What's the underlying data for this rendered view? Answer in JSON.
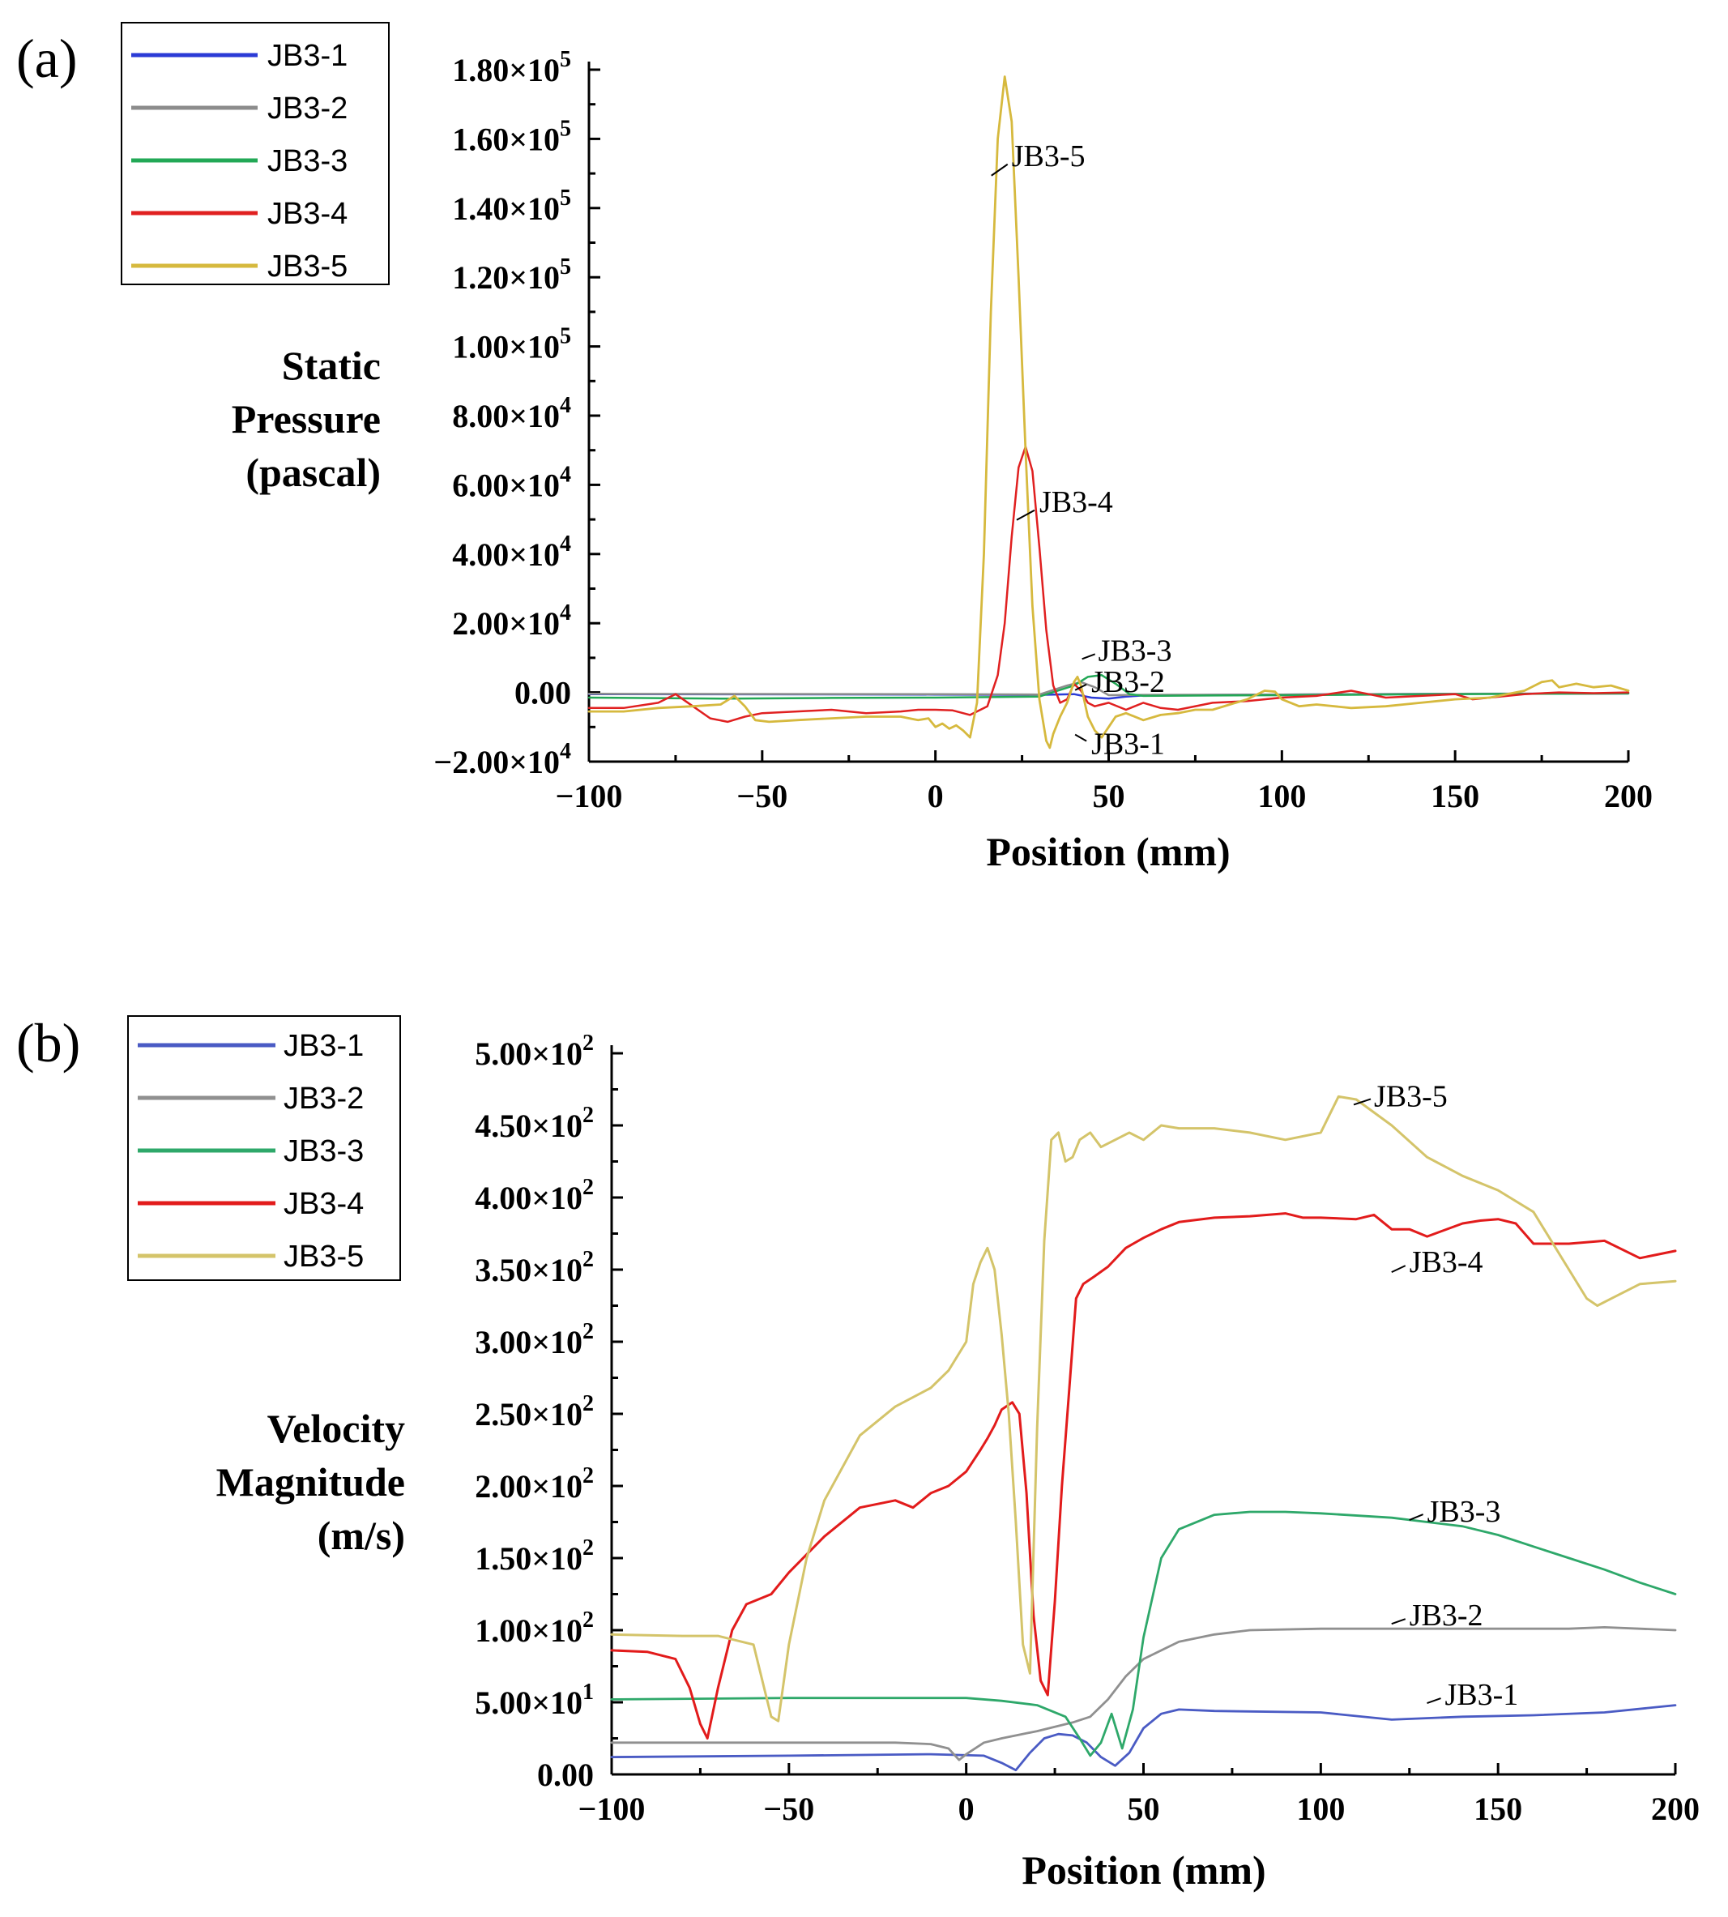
{
  "chart_data": [
    {
      "type": "line",
      "panel_label": "(a)",
      "xlabel": "Position (mm)",
      "ylabel": [
        "Static",
        "Pressure",
        "(pascal)"
      ],
      "xlim": [
        -100,
        200
      ],
      "ylim": [
        -20000,
        180000
      ],
      "xticks": [
        -100,
        -50,
        0,
        50,
        100,
        150,
        200
      ],
      "xtick_labels": [
        "−100",
        "−50",
        "0",
        "50",
        "100",
        "150",
        "200"
      ],
      "ytick_labels": [
        {
          "value": -20000,
          "mantissa": "−2.00×10",
          "exp": "4"
        },
        {
          "value": 0,
          "mantissa": "0.00",
          "exp": ""
        },
        {
          "value": 20000,
          "mantissa": "2.00×10",
          "exp": "4"
        },
        {
          "value": 40000,
          "mantissa": "4.00×10",
          "exp": "4"
        },
        {
          "value": 60000,
          "mantissa": "6.00×10",
          "exp": "4"
        },
        {
          "value": 80000,
          "mantissa": "8.00×10",
          "exp": "4"
        },
        {
          "value": 100000,
          "mantissa": "1.00×10",
          "exp": "5"
        },
        {
          "value": 120000,
          "mantissa": "1.20×10",
          "exp": "5"
        },
        {
          "value": 140000,
          "mantissa": "1.40×10",
          "exp": "5"
        },
        {
          "value": 160000,
          "mantissa": "1.60×10",
          "exp": "5"
        },
        {
          "value": 180000,
          "mantissa": "1.80×10",
          "exp": "5"
        }
      ],
      "legend_position": "top-left",
      "series": [
        {
          "name": "JB3-1",
          "color": "#2b3bd6",
          "x": [
            -100,
            0,
            30,
            40,
            45,
            50,
            55,
            60,
            80,
            100,
            150,
            200
          ],
          "y": [
            -500,
            -600,
            -700,
            -500,
            -1500,
            -1800,
            -1200,
            -900,
            -700,
            -600,
            -400,
            -300
          ]
        },
        {
          "name": "JB3-2",
          "color": "#8c8c8c",
          "x": [
            -100,
            0,
            30,
            38,
            42,
            46,
            50,
            60,
            100,
            150,
            200
          ],
          "y": [
            -400,
            -500,
            -600,
            2000,
            3000,
            1500,
            -800,
            -700,
            -600,
            -400,
            -300
          ]
        },
        {
          "name": "JB3-3",
          "color": "#22a856",
          "x": [
            -100,
            -60,
            -30,
            0,
            30,
            40,
            44,
            48,
            52,
            56,
            60,
            80,
            100,
            150,
            200
          ],
          "y": [
            -1500,
            -1800,
            -1600,
            -1500,
            -1200,
            2000,
            4500,
            5000,
            2500,
            -500,
            -1000,
            -900,
            -800,
            -500,
            -300
          ]
        },
        {
          "name": "JB3-4",
          "color": "#e02020",
          "x": [
            -100,
            -90,
            -80,
            -75,
            -70,
            -65,
            -60,
            -55,
            -50,
            -40,
            -30,
            -20,
            -10,
            -5,
            0,
            5,
            10,
            15,
            18,
            20,
            22,
            24,
            26,
            28,
            30,
            32,
            34,
            36,
            38,
            40,
            42,
            44,
            46,
            48,
            50,
            55,
            60,
            65,
            70,
            80,
            90,
            100,
            110,
            120,
            125,
            130,
            140,
            150,
            155,
            160,
            170,
            180,
            190,
            200
          ],
          "y": [
            -4500,
            -4500,
            -3000,
            -500,
            -4000,
            -7500,
            -8500,
            -7000,
            -6000,
            -5500,
            -5000,
            -6000,
            -5500,
            -5000,
            -5000,
            -5200,
            -6500,
            -4000,
            5000,
            20000,
            45000,
            65000,
            71000,
            64000,
            42000,
            18000,
            2000,
            -3000,
            -2000,
            2500,
            500,
            -3000,
            -4000,
            -3500,
            -3000,
            -5000,
            -3000,
            -4500,
            -5000,
            -3000,
            -2500,
            -1500,
            -1000,
            500,
            -500,
            -1500,
            -1000,
            -500,
            -2000,
            -1500,
            -500,
            0,
            -200,
            0
          ]
        },
        {
          "name": "JB3-5",
          "color": "#d6b93e",
          "x": [
            -100,
            -90,
            -80,
            -70,
            -62,
            -58,
            -55,
            -52,
            -48,
            -40,
            -30,
            -20,
            -10,
            -5,
            -2,
            0,
            2,
            4,
            6,
            8,
            10,
            12,
            14,
            16,
            18,
            20,
            22,
            24,
            26,
            28,
            30,
            32,
            33,
            34,
            36,
            38,
            40,
            41,
            42,
            44,
            46,
            48,
            50,
            52,
            55,
            60,
            65,
            70,
            75,
            80,
            85,
            90,
            95,
            98,
            100,
            105,
            110,
            120,
            130,
            140,
            150,
            160,
            170,
            175,
            178,
            180,
            185,
            190,
            195,
            200
          ],
          "y": [
            -5500,
            -5500,
            -4500,
            -4000,
            -3500,
            -1000,
            -4000,
            -8000,
            -8500,
            -8000,
            -7500,
            -7000,
            -7000,
            -8000,
            -7500,
            -10000,
            -9000,
            -10500,
            -9500,
            -11000,
            -13000,
            -3000,
            40000,
            110000,
            160000,
            178000,
            165000,
            120000,
            70000,
            25000,
            -2000,
            -14000,
            -16000,
            -12000,
            -7000,
            -3000,
            3000,
            4500,
            2000,
            -7000,
            -11000,
            -13000,
            -10000,
            -7000,
            -6000,
            -8000,
            -6500,
            -6000,
            -5000,
            -5000,
            -3500,
            -2000,
            500,
            200,
            -2000,
            -4000,
            -3500,
            -4500,
            -4000,
            -3000,
            -2000,
            -1500,
            500,
            3000,
            3500,
            1500,
            2500,
            1500,
            2000,
            500
          ]
        }
      ],
      "annotations": [
        {
          "text": "JB3-5",
          "x": 22,
          "y": 155000
        },
        {
          "text": "JB3-4",
          "x": 30,
          "y": 55000
        },
        {
          "text": "JB3-3",
          "x": 47,
          "y": 12000
        },
        {
          "text": "JB3-2",
          "x": 45,
          "y": 3000
        },
        {
          "text": "JB3-1",
          "x": 45,
          "y": -15000
        }
      ]
    },
    {
      "type": "line",
      "panel_label": "(b)",
      "xlabel": "Position (mm)",
      "ylabel": [
        "Velocity",
        "Magnitude",
        "(m/s)"
      ],
      "xlim": [
        -100,
        200
      ],
      "ylim": [
        0,
        500
      ],
      "xticks": [
        -100,
        -50,
        0,
        50,
        100,
        150,
        200
      ],
      "xtick_labels": [
        "−100",
        "−50",
        "0",
        "50",
        "100",
        "150",
        "200"
      ],
      "ytick_labels": [
        {
          "value": 0,
          "mantissa": "0.00",
          "exp": ""
        },
        {
          "value": 50,
          "mantissa": "5.00×10",
          "exp": "1"
        },
        {
          "value": 100,
          "mantissa": "1.00×10",
          "exp": "2"
        },
        {
          "value": 150,
          "mantissa": "1.50×10",
          "exp": "2"
        },
        {
          "value": 200,
          "mantissa": "2.00×10",
          "exp": "2"
        },
        {
          "value": 250,
          "mantissa": "2.50×10",
          "exp": "2"
        },
        {
          "value": 300,
          "mantissa": "3.00×10",
          "exp": "2"
        },
        {
          "value": 350,
          "mantissa": "3.50×10",
          "exp": "2"
        },
        {
          "value": 400,
          "mantissa": "4.00×10",
          "exp": "2"
        },
        {
          "value": 450,
          "mantissa": "4.50×10",
          "exp": "2"
        },
        {
          "value": 500,
          "mantissa": "5.00×10",
          "exp": "2"
        }
      ],
      "legend_position": "top-left",
      "series": [
        {
          "name": "JB3-1",
          "color": "#4a5bc4",
          "x": [
            -100,
            -50,
            -10,
            5,
            10,
            14,
            18,
            22,
            26,
            30,
            34,
            38,
            42,
            46,
            50,
            55,
            60,
            70,
            100,
            120,
            140,
            160,
            180,
            200
          ],
          "y": [
            12,
            13,
            14,
            13,
            8,
            3,
            15,
            25,
            28,
            27,
            22,
            12,
            6,
            15,
            32,
            42,
            45,
            44,
            43,
            38,
            40,
            41,
            43,
            48
          ]
        },
        {
          "name": "JB3-2",
          "color": "#909090",
          "x": [
            -100,
            -50,
            -20,
            -10,
            -5,
            -2,
            0,
            5,
            10,
            20,
            30,
            35,
            40,
            45,
            50,
            60,
            70,
            80,
            100,
            120,
            150,
            170,
            180,
            190,
            200
          ],
          "y": [
            22,
            22,
            22,
            21,
            18,
            10,
            14,
            22,
            25,
            30,
            36,
            40,
            52,
            68,
            80,
            92,
            97,
            100,
            101,
            101,
            101,
            101,
            102,
            101,
            100
          ]
        },
        {
          "name": "JB3-3",
          "color": "#2ea86a",
          "x": [
            -100,
            -50,
            0,
            10,
            20,
            28,
            32,
            35,
            38,
            41,
            44,
            47,
            50,
            55,
            60,
            70,
            80,
            90,
            100,
            120,
            140,
            150,
            160,
            170,
            180,
            190,
            200
          ],
          "y": [
            52,
            53,
            53,
            51,
            48,
            40,
            25,
            13,
            22,
            42,
            18,
            45,
            95,
            150,
            170,
            180,
            182,
            182,
            181,
            178,
            172,
            166,
            158,
            150,
            142,
            133,
            125
          ]
        },
        {
          "name": "JB3-4",
          "color": "#e21b1b",
          "x": [
            -100,
            -90,
            -82,
            -78,
            -75,
            -73,
            -70,
            -66,
            -62,
            -55,
            -50,
            -40,
            -30,
            -20,
            -15,
            -10,
            -5,
            0,
            4,
            6,
            8,
            10,
            13,
            15,
            17,
            19,
            21,
            23,
            25,
            27,
            29,
            31,
            33,
            36,
            40,
            45,
            50,
            55,
            60,
            70,
            80,
            90,
            95,
            100,
            110,
            115,
            120,
            125,
            130,
            140,
            145,
            150,
            155,
            160,
            170,
            180,
            190,
            200
          ],
          "y": [
            86,
            85,
            80,
            60,
            35,
            25,
            60,
            100,
            118,
            125,
            140,
            165,
            185,
            190,
            185,
            195,
            200,
            210,
            225,
            233,
            242,
            253,
            258,
            250,
            195,
            110,
            65,
            55,
            120,
            200,
            265,
            330,
            340,
            345,
            352,
            365,
            372,
            378,
            383,
            386,
            387,
            389,
            386,
            386,
            385,
            388,
            378,
            378,
            373,
            382,
            384,
            385,
            382,
            368,
            368,
            370,
            358,
            363
          ]
        },
        {
          "name": "JB3-5",
          "color": "#d4c46a",
          "x": [
            -100,
            -80,
            -70,
            -60,
            -57,
            -55,
            -53,
            -50,
            -45,
            -40,
            -30,
            -20,
            -10,
            -5,
            0,
            2,
            4,
            6,
            8,
            10,
            12,
            14,
            16,
            18,
            20,
            22,
            24,
            26,
            28,
            30,
            32,
            35,
            38,
            42,
            46,
            50,
            55,
            60,
            70,
            80,
            90,
            100,
            105,
            110,
            120,
            130,
            140,
            150,
            160,
            170,
            175,
            178,
            182,
            190,
            200
          ],
          "y": [
            97,
            96,
            96,
            90,
            60,
            40,
            37,
            90,
            150,
            190,
            235,
            255,
            268,
            280,
            300,
            340,
            355,
            365,
            350,
            305,
            250,
            175,
            90,
            70,
            240,
            370,
            440,
            445,
            425,
            428,
            440,
            445,
            435,
            440,
            445,
            440,
            450,
            448,
            448,
            445,
            440,
            445,
            470,
            468,
            450,
            428,
            415,
            405,
            390,
            350,
            330,
            325,
            330,
            340,
            342
          ]
        }
      ],
      "annotations": [
        {
          "text": "JB3-5",
          "x": 115,
          "y": 470
        },
        {
          "text": "JB3-4",
          "x": 125,
          "y": 355
        },
        {
          "text": "JB3-3",
          "x": 130,
          "y": 182
        },
        {
          "text": "JB3-2",
          "x": 125,
          "y": 110
        },
        {
          "text": "JB3-1",
          "x": 135,
          "y": 55
        }
      ]
    }
  ]
}
